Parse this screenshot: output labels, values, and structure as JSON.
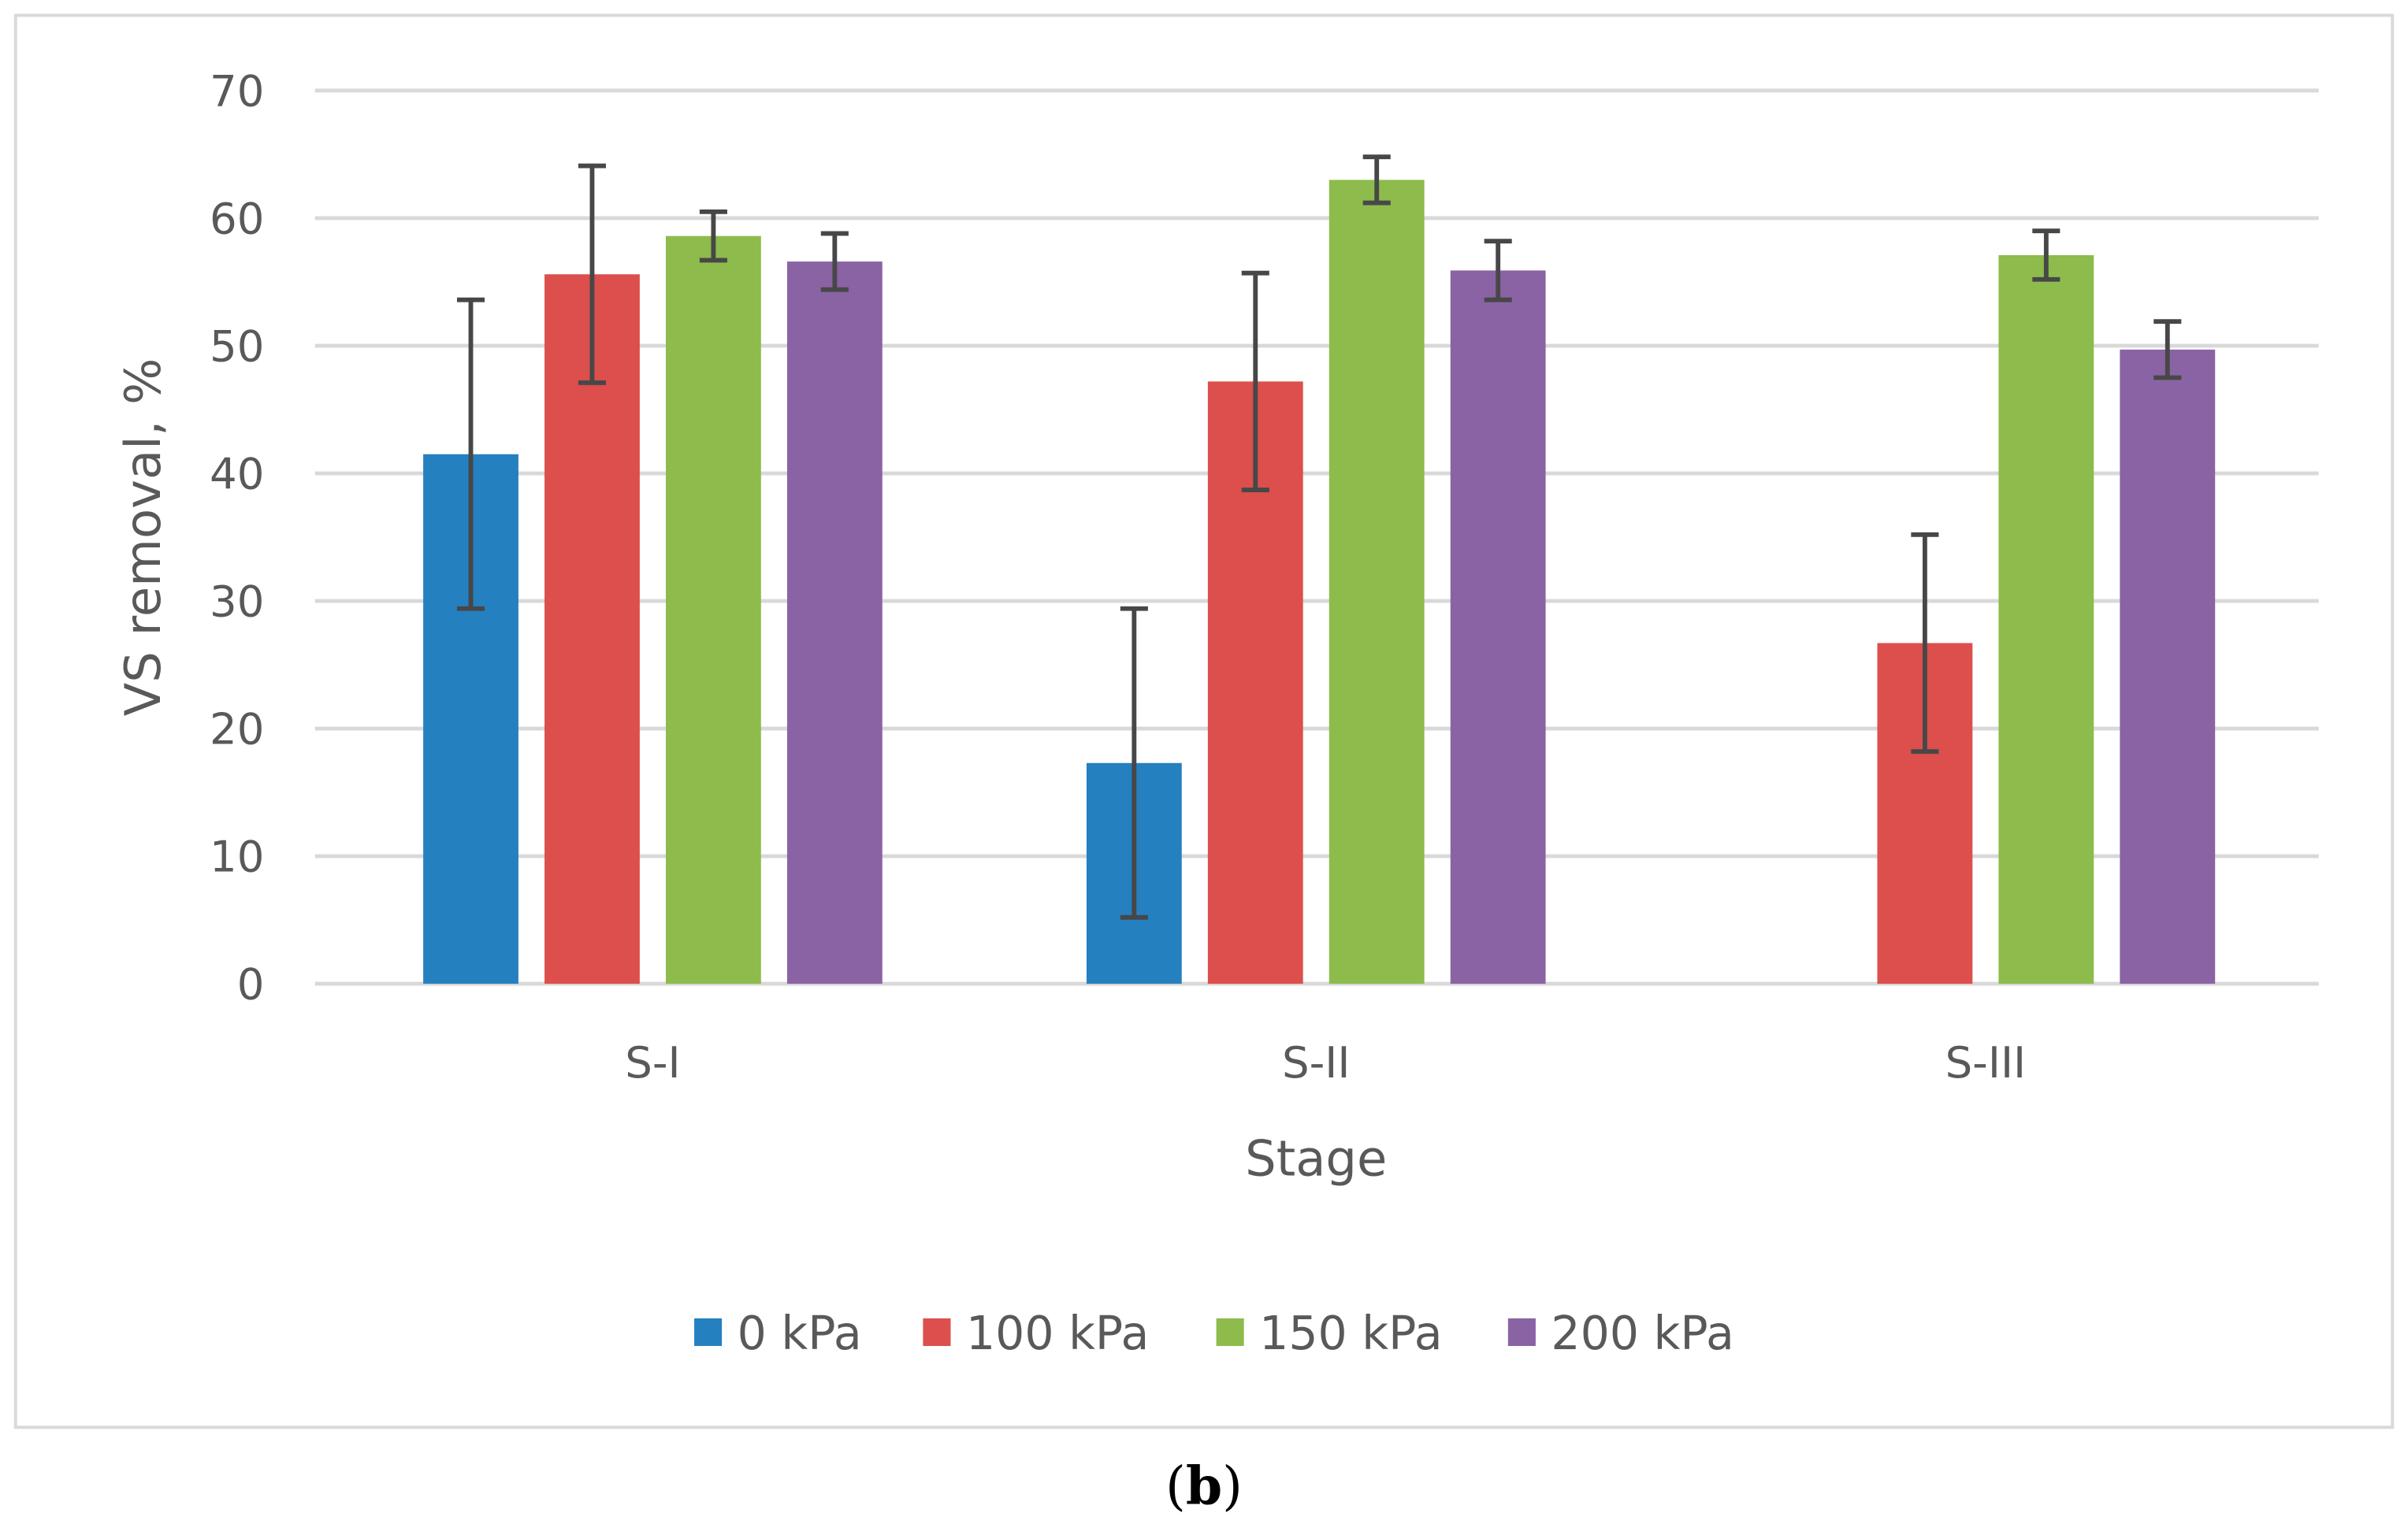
{
  "chart_data": {
    "type": "bar",
    "title": "",
    "xlabel": "Stage",
    "ylabel": "VS removal, %",
    "ylim": [
      0,
      70
    ],
    "yticks": [
      0,
      10,
      20,
      30,
      40,
      50,
      60,
      70
    ],
    "grid": true,
    "legend_position": "bottom",
    "categories": [
      "S-I",
      "S-II",
      "S-III"
    ],
    "series": [
      {
        "name": "0 kPa",
        "color": "#2580c0",
        "values": [
          41.5,
          17.3,
          0
        ],
        "errors": [
          12.1,
          12.1,
          null
        ]
      },
      {
        "name": "100 kPa",
        "color": "#dc4f4c",
        "values": [
          55.6,
          47.2,
          26.7
        ],
        "errors": [
          8.5,
          8.5,
          8.5
        ]
      },
      {
        "name": "150 kPa",
        "color": "#8dbb4c",
        "values": [
          58.6,
          63.0,
          57.1
        ],
        "errors": [
          1.9,
          1.8,
          1.9
        ]
      },
      {
        "name": "200 kPa",
        "color": "#8a63a4",
        "values": [
          56.6,
          55.9,
          49.7
        ],
        "errors": [
          2.2,
          2.3,
          2.2
        ]
      }
    ]
  },
  "caption": {
    "open": "(",
    "letter": "b",
    "close": ")"
  }
}
